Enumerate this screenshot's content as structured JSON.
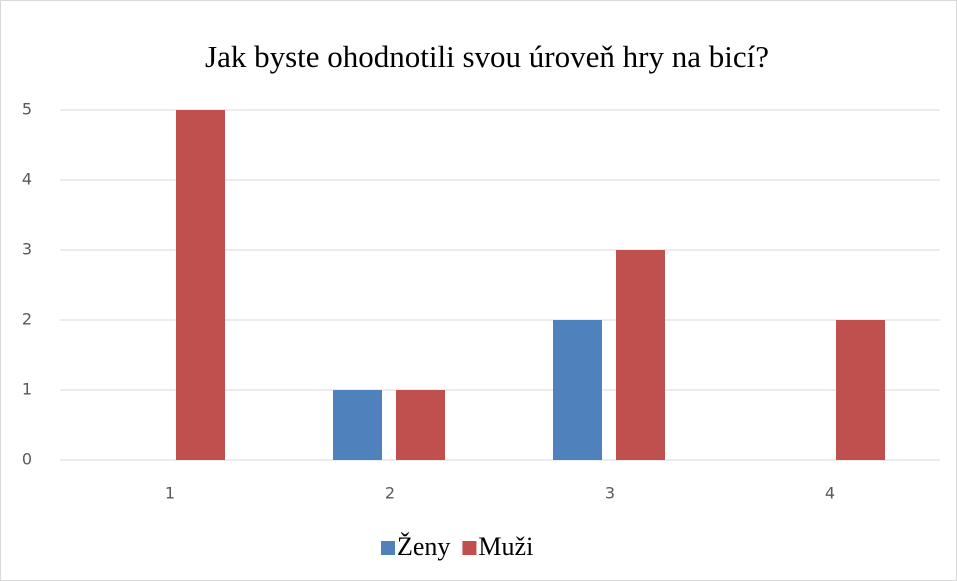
{
  "chart_data": {
    "type": "bar",
    "title": "Jak byste ohodnotili svou úroveň hry na bicí?",
    "categories": [
      "1",
      "2",
      "3",
      "4"
    ],
    "series": [
      {
        "name": "Ženy",
        "color": "#4f81bd",
        "values": [
          0,
          1,
          2,
          0
        ]
      },
      {
        "name": "Muži",
        "color": "#c0504d",
        "values": [
          5,
          1,
          3,
          2
        ]
      }
    ],
    "ylim": [
      0,
      5
    ],
    "yticks": [
      0,
      1,
      2,
      3,
      4,
      5
    ],
    "grid": true,
    "legend": "bottom"
  }
}
